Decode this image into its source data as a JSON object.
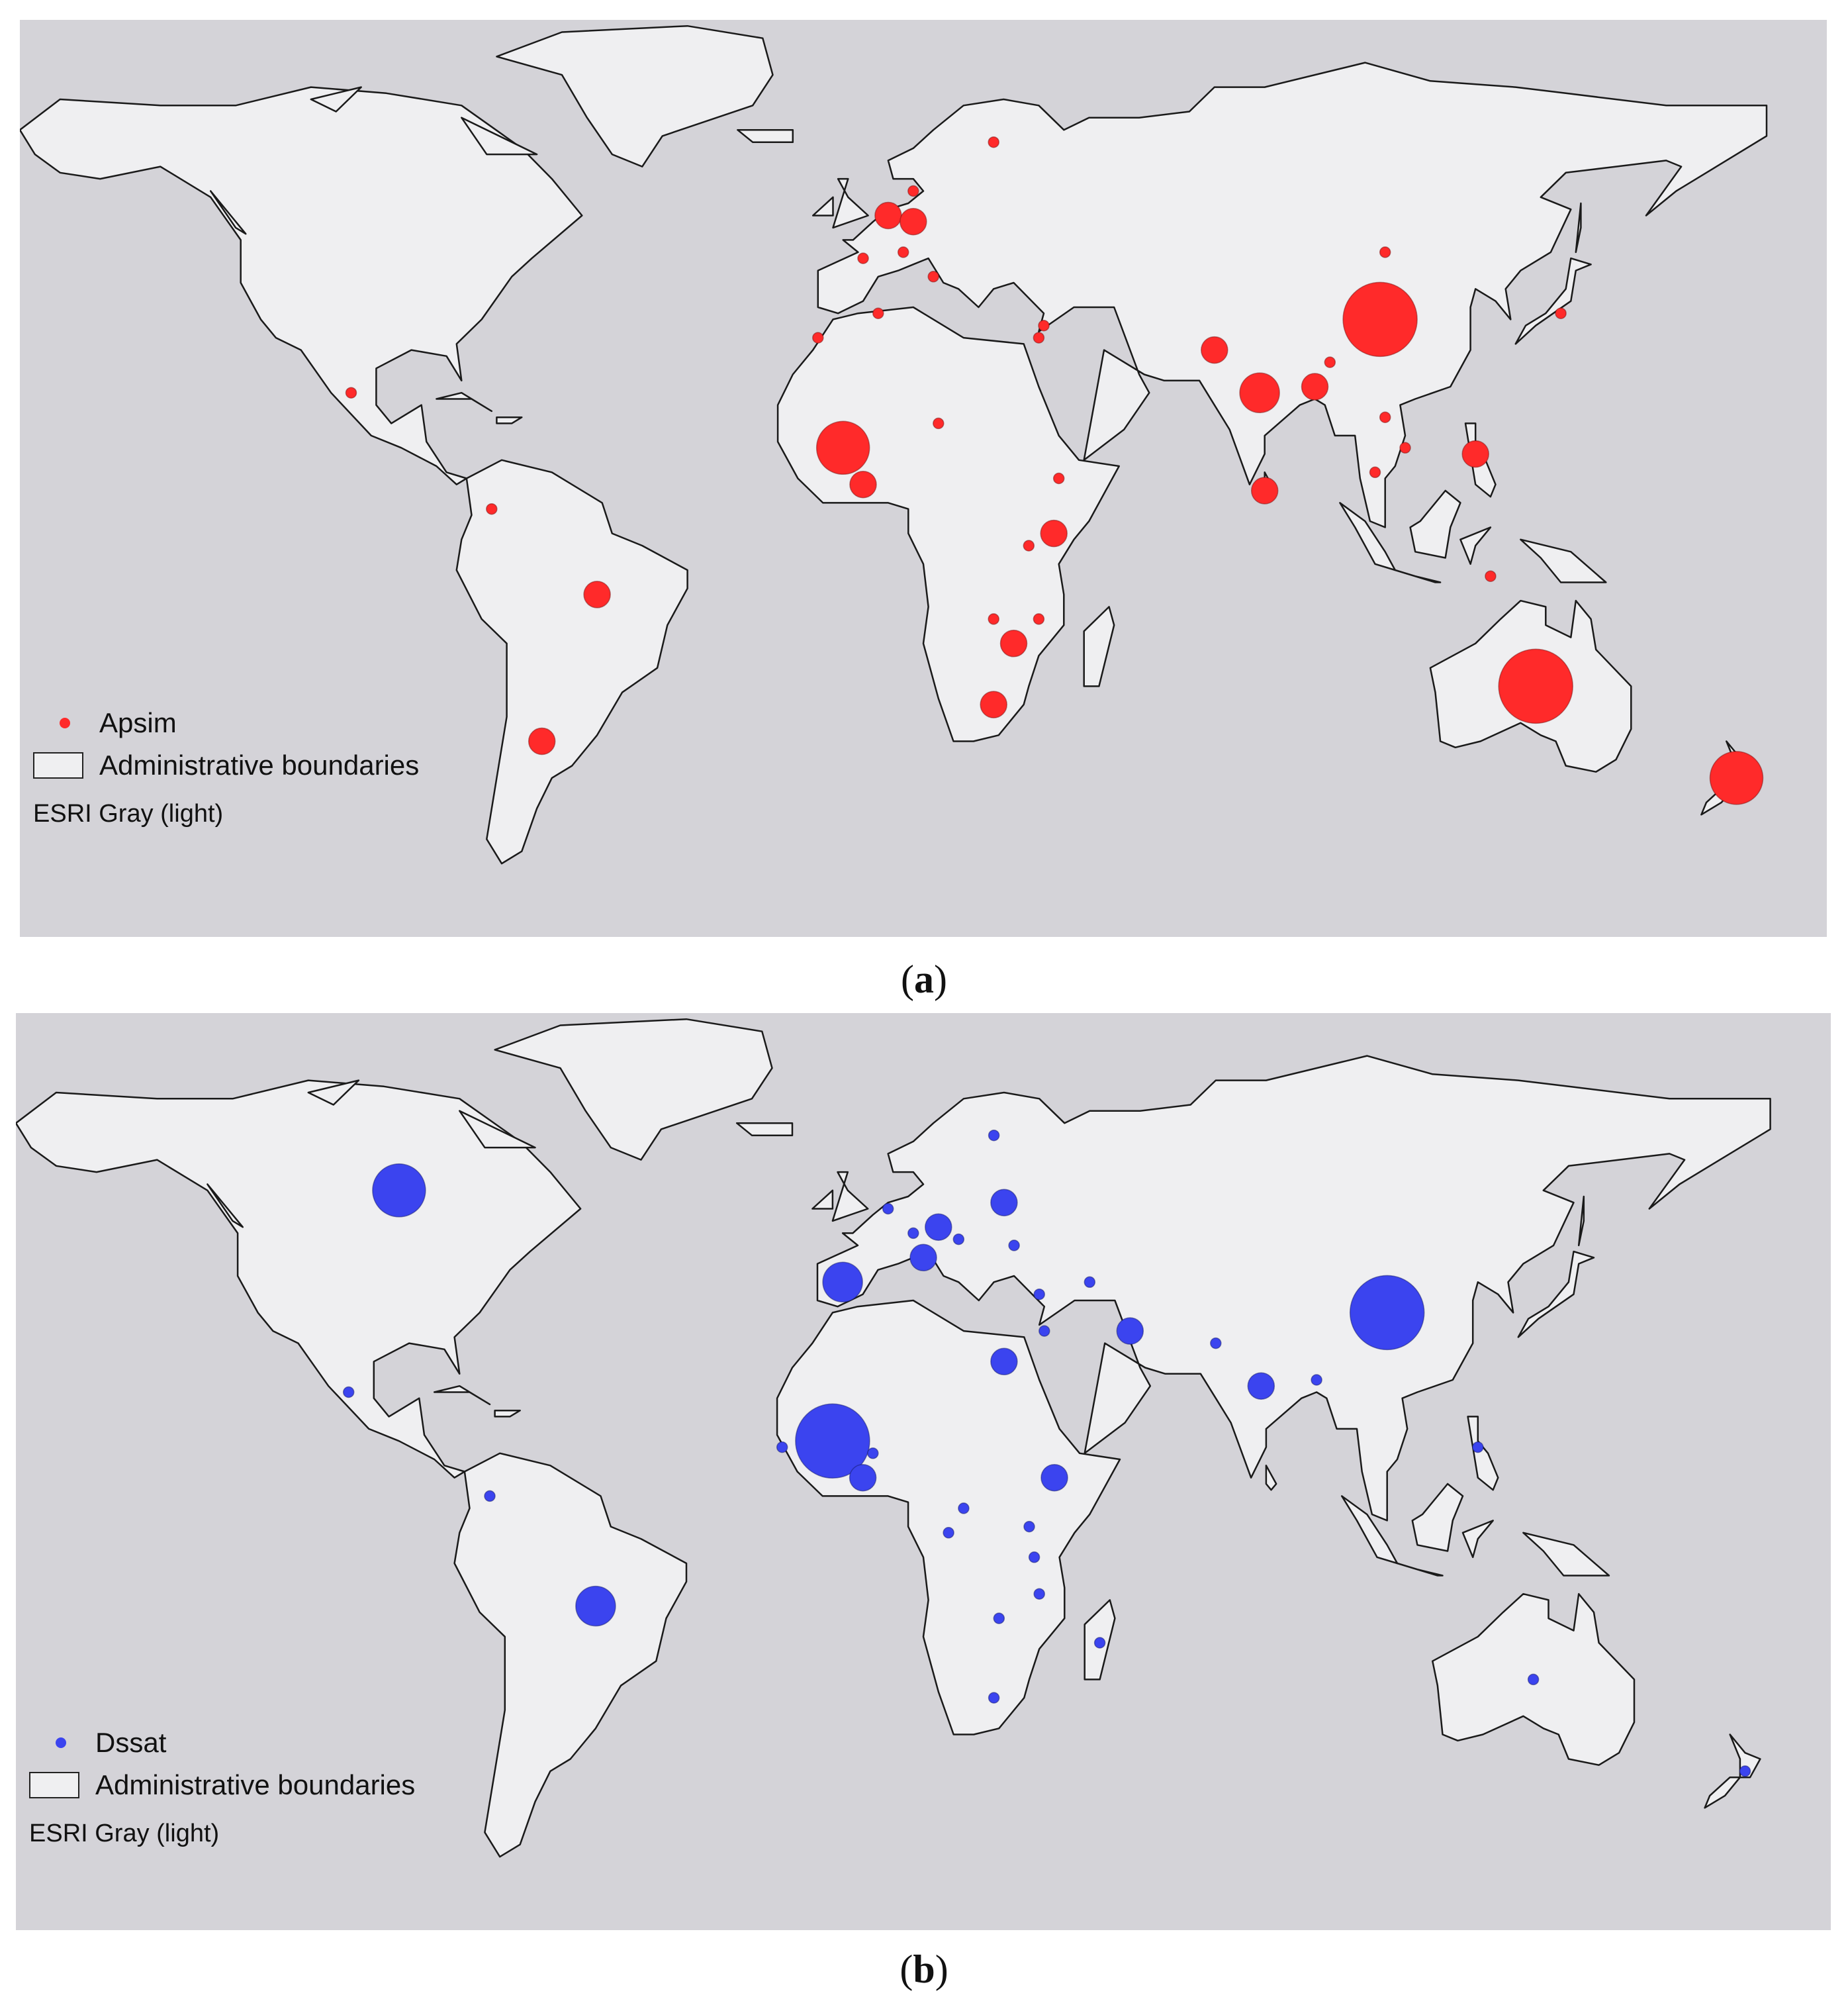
{
  "panels": [
    {
      "id": "a",
      "caption_open": "(",
      "caption_letter": "a",
      "caption_close": ")",
      "legend": {
        "layer_label": "Apsim",
        "layer_color": "#ff2a2a",
        "boundaries_label": "Administrative boundaries",
        "basemap_label": "ESRI Gray (light)"
      },
      "point_color": "#ff2a2a",
      "points": [
        {
          "lon": 103,
          "lat": 35,
          "size": 5
        },
        {
          "lon": 134,
          "lat": -25,
          "size": 6
        },
        {
          "lon": 174,
          "lat": -40,
          "size": 4
        },
        {
          "lon": -4,
          "lat": 14,
          "size": 4
        },
        {
          "lon": 79,
          "lat": 23,
          "size": 3
        },
        {
          "lon": -53,
          "lat": -10,
          "size": 2
        },
        {
          "lon": 38,
          "lat": 0,
          "size": 2
        },
        {
          "lon": 30,
          "lat": -18,
          "size": 2
        },
        {
          "lon": 26,
          "lat": -28,
          "size": 2
        },
        {
          "lon": -64,
          "lat": -34,
          "size": 2
        },
        {
          "lon": 80,
          "lat": 7,
          "size": 2
        },
        {
          "lon": 122,
          "lat": 13,
          "size": 2
        },
        {
          "lon": 90,
          "lat": 24,
          "size": 2
        },
        {
          "lon": 70,
          "lat": 30,
          "size": 2
        },
        {
          "lon": 5,
          "lat": 52,
          "size": 2
        },
        {
          "lon": 10,
          "lat": 51,
          "size": 2
        },
        {
          "lon": 26,
          "lat": 64,
          "size": 1
        },
        {
          "lon": 0,
          "lat": 8,
          "size": 2
        },
        {
          "lon": -102,
          "lat": 23,
          "size": 1
        },
        {
          "lon": 35,
          "lat": -14,
          "size": 1
        },
        {
          "lon": 33,
          "lat": -2,
          "size": 1
        },
        {
          "lon": 104,
          "lat": 46,
          "size": 1
        },
        {
          "lon": 139,
          "lat": 36,
          "size": 1
        },
        {
          "lon": 108,
          "lat": 14,
          "size": 1
        },
        {
          "lon": 102,
          "lat": 10,
          "size": 1
        },
        {
          "lon": 0,
          "lat": 45,
          "size": 1
        },
        {
          "lon": 8,
          "lat": 46,
          "size": 1
        },
        {
          "lon": 10,
          "lat": 56,
          "size": 1
        },
        {
          "lon": 3,
          "lat": 36,
          "size": 1
        },
        {
          "lon": -9,
          "lat": 32,
          "size": 1
        },
        {
          "lon": 15,
          "lat": 18,
          "size": 1
        },
        {
          "lon": 26,
          "lat": -14,
          "size": 1
        },
        {
          "lon": 36,
          "lat": 34,
          "size": 1
        },
        {
          "lon": 35,
          "lat": 32,
          "size": 1
        },
        {
          "lon": 39,
          "lat": 9,
          "size": 1
        },
        {
          "lon": 93,
          "lat": 28,
          "size": 1
        },
        {
          "lon": 104,
          "lat": 19,
          "size": 1
        },
        {
          "lon": -74,
          "lat": 4,
          "size": 1
        },
        {
          "lon": 125,
          "lat": -7,
          "size": 1
        },
        {
          "lon": 14,
          "lat": 42,
          "size": 1
        }
      ]
    },
    {
      "id": "b",
      "caption_open": "(",
      "caption_letter": "b",
      "caption_close": ")",
      "legend": {
        "layer_label": "Dssat",
        "layer_color": "#3b44ef",
        "boundaries_label": "Administrative boundaries",
        "basemap_label": "ESRI Gray (light)"
      },
      "point_color": "#3b44ef",
      "points": [
        {
          "lon": 104,
          "lat": 35,
          "size": 5
        },
        {
          "lon": -6,
          "lat": 14,
          "size": 5
        },
        {
          "lon": -92,
          "lat": 55,
          "size": 4
        },
        {
          "lon": -53,
          "lat": -13,
          "size": 3
        },
        {
          "lon": -4,
          "lat": 40,
          "size": 3
        },
        {
          "lon": 79,
          "lat": 23,
          "size": 2
        },
        {
          "lon": 12,
          "lat": 44,
          "size": 2
        },
        {
          "lon": 15,
          "lat": 49,
          "size": 2
        },
        {
          "lon": 53,
          "lat": 32,
          "size": 2
        },
        {
          "lon": 28,
          "lat": 27,
          "size": 2
        },
        {
          "lon": 0,
          "lat": 8,
          "size": 2
        },
        {
          "lon": 38,
          "lat": 8,
          "size": 2
        },
        {
          "lon": 28,
          "lat": 53,
          "size": 2
        },
        {
          "lon": 19,
          "lat": 47,
          "size": 1
        },
        {
          "lon": 34,
          "lat": -5,
          "size": 1
        },
        {
          "lon": 27,
          "lat": -15,
          "size": 1
        },
        {
          "lon": 133,
          "lat": -25,
          "size": 1
        },
        {
          "lon": -102,
          "lat": 22,
          "size": 1
        },
        {
          "lon": 10,
          "lat": 48,
          "size": 1
        },
        {
          "lon": 35,
          "lat": 38,
          "size": 1
        },
        {
          "lon": 90,
          "lat": 24,
          "size": 1
        },
        {
          "lon": 122,
          "lat": 13,
          "size": 1
        },
        {
          "lon": 26,
          "lat": -28,
          "size": 1
        },
        {
          "lon": 33,
          "lat": 0,
          "size": 1
        },
        {
          "lon": 35,
          "lat": -11,
          "size": 1
        },
        {
          "lon": 26,
          "lat": 64,
          "size": 1
        },
        {
          "lon": -74,
          "lat": 5,
          "size": 1
        },
        {
          "lon": 5,
          "lat": 52,
          "size": 1
        },
        {
          "lon": -16,
          "lat": 13,
          "size": 1
        },
        {
          "lon": 70,
          "lat": 30,
          "size": 1
        },
        {
          "lon": 175,
          "lat": -40,
          "size": 1
        },
        {
          "lon": 47,
          "lat": -19,
          "size": 1
        },
        {
          "lon": 20,
          "lat": 3,
          "size": 1
        },
        {
          "lon": 36,
          "lat": 32,
          "size": 1
        },
        {
          "lon": 45,
          "lat": 40,
          "size": 1
        },
        {
          "lon": 2,
          "lat": 12,
          "size": 1
        },
        {
          "lon": 17,
          "lat": -1,
          "size": 1
        },
        {
          "lon": 30,
          "lat": 46,
          "size": 1
        }
      ]
    }
  ]
}
